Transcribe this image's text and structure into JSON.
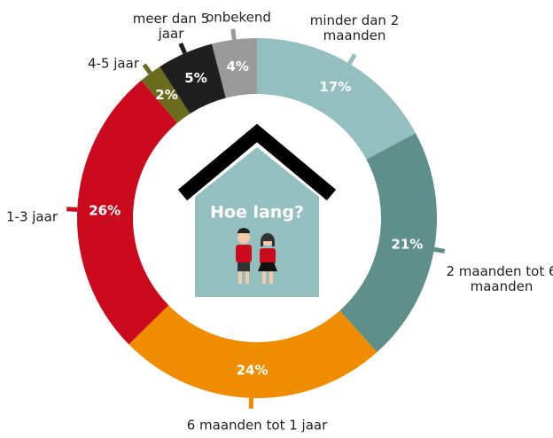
{
  "chart_data": {
    "type": "donut",
    "center_label": "Hoe lang?",
    "categories": [
      "minder dan 2 maanden",
      "2 maanden tot 6 maanden",
      "6 maanden tot 1 jaar",
      "1-3 jaar",
      "4-5 jaar",
      "meer dan 5 jaar",
      "onbekend"
    ],
    "values": [
      17,
      21,
      24,
      26,
      2,
      5,
      4
    ],
    "value_labels": [
      "17%",
      "21%",
      "24%",
      "26%",
      "2%",
      "5%",
      "4%"
    ],
    "colors": [
      "#93bfbf",
      "#5f8f8a",
      "#f08c00",
      "#cc0a1e",
      "#6b6b1e",
      "#1f1f1f",
      "#9a9a9a"
    ]
  }
}
